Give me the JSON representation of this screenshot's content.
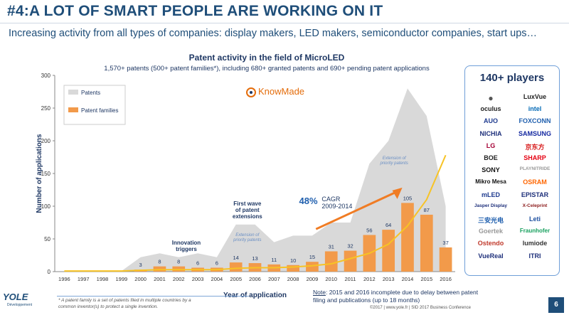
{
  "slide": {
    "title": "#4:A LOT OF SMART PEOPLE ARE WORKING ON IT",
    "subtitle": "Increasing activity from all types of companies: display makers, LED makers, semiconductor companies, start ups…",
    "page_number": "6",
    "copyright": "©2017 | www.yole.fr | SID 2017 Business Conference",
    "footnote_line1": "* A patent family is a set of patents filed in multiple countries by a",
    "footnote_line2": "common inventor(s) to protect a single invention.",
    "note_label": "Note",
    "note_text": ": 2015 and 2016 incomplete due to delay between patent filing and publications (up to 18 months)",
    "yole_logo_text": "YOLE",
    "yole_logo_sub": "Développement",
    "colors": {
      "title": "#1f4e79",
      "accent": "#e46c0a",
      "bars": "#f29a4a",
      "area": "#d9d9d9",
      "cagr_line": "#f7c325"
    }
  },
  "chart_data": {
    "type": "bar",
    "title": "Patent activity in the field of MicroLED",
    "subtitle": "1,570+ patents (500+ patent families*), including 680+ granted patents and 690+ pending patent applications",
    "xlabel": "Year of application",
    "ylabel": "Number of applications",
    "ylim": [
      0,
      300
    ],
    "yticks": [
      0,
      50,
      100,
      150,
      200,
      250,
      300
    ],
    "categories": [
      "1996",
      "1997",
      "1998",
      "1999",
      "2000",
      "2001",
      "2002",
      "2003",
      "2004",
      "2005",
      "2006",
      "2007",
      "2008",
      "2009",
      "2010",
      "2011",
      "2012",
      "2013",
      "2014",
      "2015",
      "2016"
    ],
    "series": [
      {
        "name": "Patents",
        "kind": "area",
        "color": "#d9d9d9",
        "values": [
          1,
          1,
          1,
          1,
          22,
          28,
          22,
          28,
          22,
          72,
          72,
          45,
          55,
          55,
          75,
          75,
          165,
          200,
          280,
          238,
          100
        ]
      },
      {
        "name": "Patent families",
        "kind": "bar",
        "color": "#f29a4a",
        "values": [
          0,
          0,
          0,
          0,
          3,
          8,
          8,
          6,
          6,
          14,
          13,
          11,
          10,
          15,
          31,
          32,
          56,
          64,
          105,
          87,
          37
        ],
        "labels": [
          "",
          "",
          "",
          "",
          "3",
          "8",
          "8",
          "6",
          "6",
          "14",
          "13",
          "11",
          "10",
          "15",
          "31",
          "32",
          "56",
          "64",
          "105",
          "87",
          "37"
        ]
      }
    ],
    "trend_line": {
      "color": "#f7c325",
      "values": [
        1,
        1,
        1,
        1,
        2,
        3,
        3,
        3,
        3,
        5,
        6,
        6,
        7,
        9,
        12,
        20,
        28,
        42,
        70,
        110,
        178
      ]
    },
    "legend": {
      "placement": "top-left",
      "items": [
        "Patents",
        "Patent families"
      ]
    },
    "annotations": {
      "innovation": "Innovation triggers",
      "first_wave": "First wave of patent extensions",
      "extension_1": "Extension of priority patents",
      "extension_2": "Extension of priority patents",
      "cagr_value": "48%",
      "cagr_label": "CAGR",
      "cagr_period": "2009-2014"
    },
    "grid": false
  },
  "branding": {
    "knowmade": "KnowMade"
  },
  "players": {
    "title": "140+ players",
    "logos": [
      {
        "name": "",
        "icon": "apple-logo",
        "color": "#555555"
      },
      {
        "name": "LuxVue",
        "color": "#222222"
      },
      {
        "name": "oculus",
        "color": "#222222"
      },
      {
        "name": "intel",
        "color": "#0068b5"
      },
      {
        "name": "AUO",
        "color": "#1f3b8f"
      },
      {
        "name": "FOXCONN",
        "color": "#1f5fae"
      },
      {
        "name": "NICHIA",
        "color": "#1d2f7a"
      },
      {
        "name": "SAMSUNG",
        "color": "#1428a0"
      },
      {
        "name": "LG",
        "color": "#a50034"
      },
      {
        "name": "京东方",
        "color": "#d81e1e"
      },
      {
        "name": "BOE",
        "color": "#222222"
      },
      {
        "name": "SHARP",
        "color": "#e60012"
      },
      {
        "name": "SONY",
        "color": "#111111"
      },
      {
        "name": "PLAYNITRIDE",
        "color": "#999999"
      },
      {
        "name": "Mikro Mesa",
        "color": "#111111"
      },
      {
        "name": "OSRAM",
        "color": "#ff6600"
      },
      {
        "name": "mLED",
        "color": "#1f3b8f"
      },
      {
        "name": "EPISTAR",
        "color": "#1d2f7a"
      },
      {
        "name": "Jasper Display",
        "color": "#1d2f7a"
      },
      {
        "name": "X-Celeprint",
        "color": "#8b1a1a"
      },
      {
        "name": "三安光电",
        "color": "#1f5fae"
      },
      {
        "name": "Leti",
        "color": "#1d4fa0"
      },
      {
        "name": "Goertek",
        "color": "#999999"
      },
      {
        "name": "Fraunhofer",
        "color": "#17a05e"
      },
      {
        "name": "Ostendo",
        "color": "#c0392b"
      },
      {
        "name": "lumiode",
        "color": "#333333"
      },
      {
        "name": "VueReal",
        "color": "#1d2f7a"
      },
      {
        "name": "ITRI",
        "color": "#1d2f7a"
      }
    ]
  }
}
